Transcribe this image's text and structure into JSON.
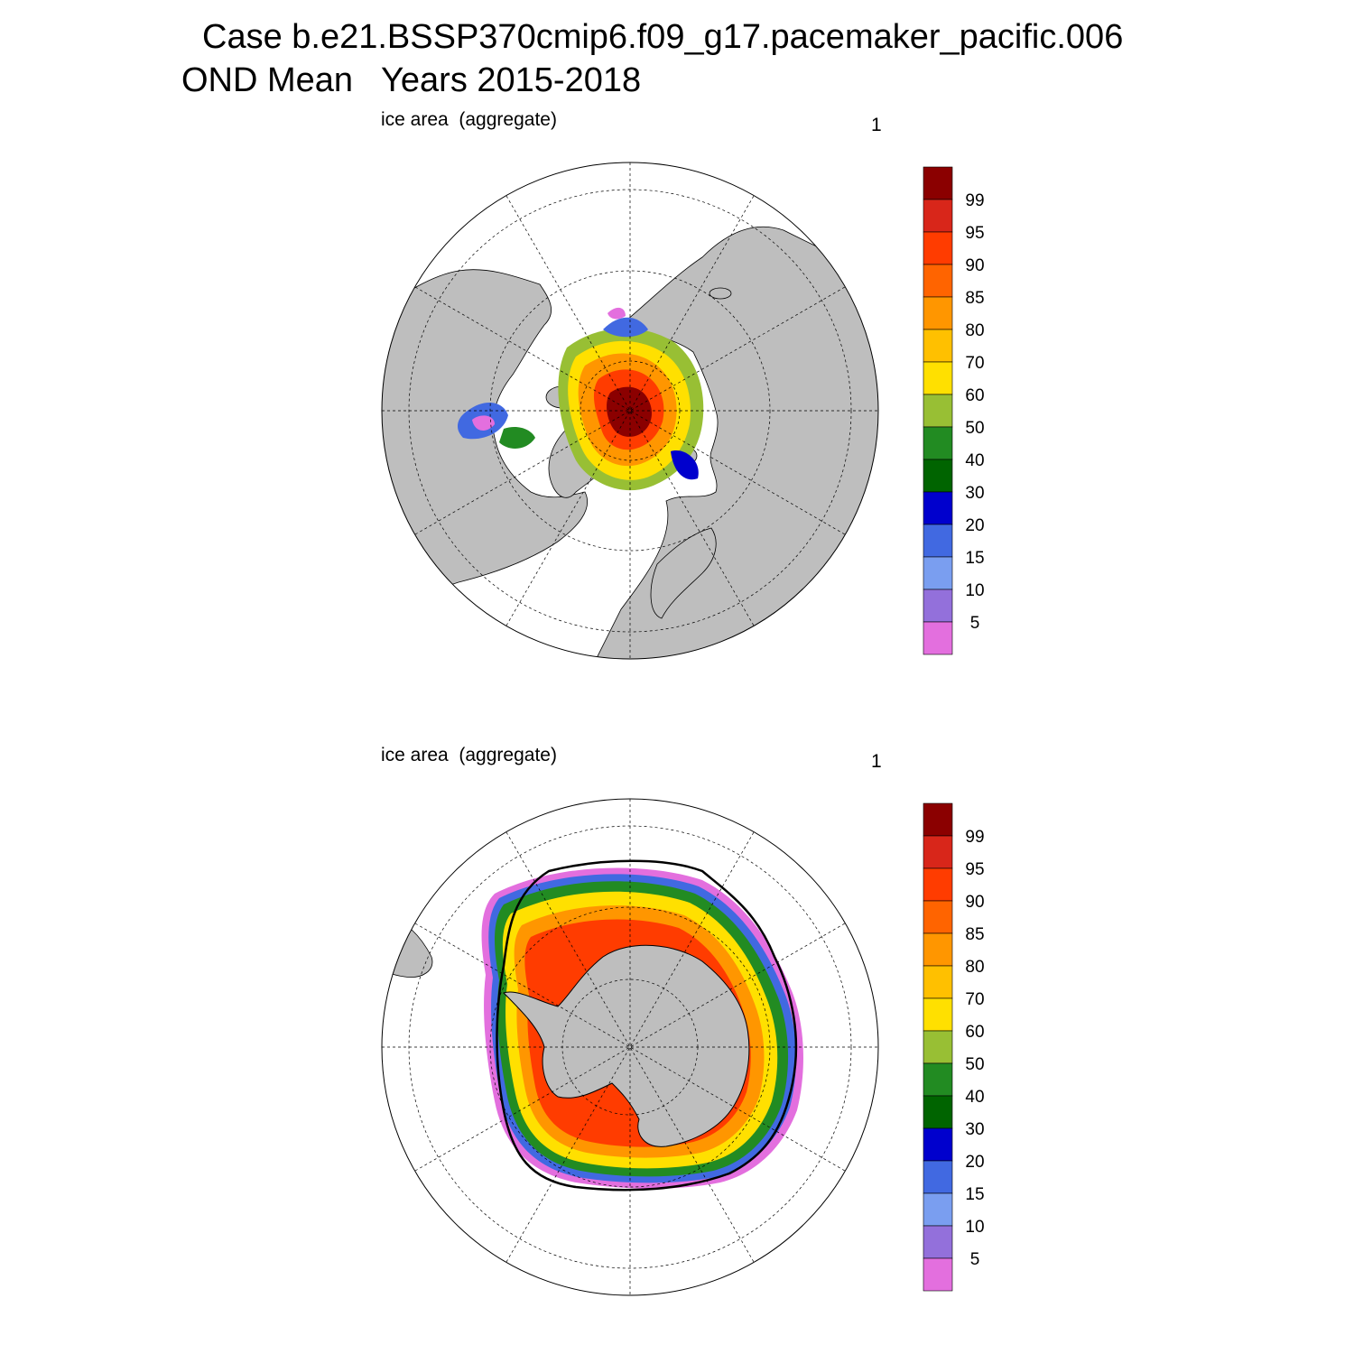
{
  "title": {
    "line1": "Case b.e21.BSSP370cmip6.f09_g17.pacemaker_pacific.006",
    "line2": "OND Mean   Years 2015-2018"
  },
  "panels": [
    {
      "id": "north",
      "left_label": "ice area  (aggregate)",
      "right_label": "1"
    },
    {
      "id": "south",
      "left_label": "ice area  (aggregate)",
      "right_label": "1"
    }
  ],
  "colorbar": {
    "labels": [
      "99",
      "95",
      "90",
      "85",
      "80",
      "70",
      "60",
      "50",
      "40",
      "30",
      "20",
      "15",
      "10",
      "5"
    ],
    "colors": [
      "#8b0000",
      "#d8261a",
      "#ff3c00",
      "#ff6400",
      "#ff9600",
      "#ffc000",
      "#ffe000",
      "#98bf34",
      "#228b22",
      "#006400",
      "#0000cd",
      "#4169e1",
      "#7a9ef0",
      "#9370db",
      "#e36fde"
    ]
  },
  "map_colors": {
    "land": "#bebebe",
    "ocean": "#ffffff"
  }
}
